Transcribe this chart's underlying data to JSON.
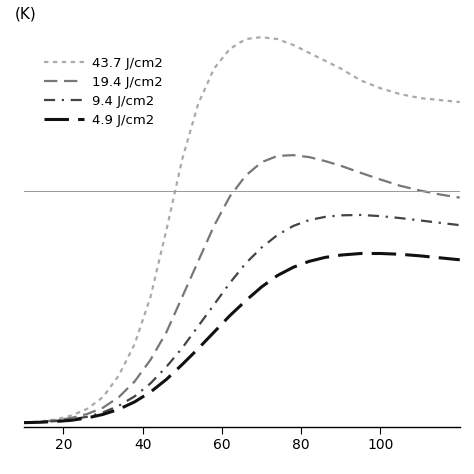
{
  "xlabel_label": "(K)",
  "x_ticks": [
    20,
    40,
    60,
    80,
    100
  ],
  "xlim": [
    10,
    120
  ],
  "ylim": [
    0.0,
    1.0
  ],
  "hline_y": 0.6,
  "series": [
    {
      "label": "43.7 J/cm2",
      "color": "#aaaaaa",
      "linewidth": 1.6,
      "linestyle_code": 0,
      "x": [
        10,
        14,
        18,
        22,
        26,
        30,
        34,
        38,
        42,
        46,
        50,
        54,
        58,
        62,
        66,
        70,
        74,
        78,
        82,
        86,
        90,
        95,
        100,
        105,
        110,
        115,
        120
      ],
      "y": [
        0.01,
        0.013,
        0.018,
        0.028,
        0.045,
        0.075,
        0.13,
        0.21,
        0.33,
        0.5,
        0.68,
        0.82,
        0.91,
        0.96,
        0.985,
        0.99,
        0.985,
        0.97,
        0.95,
        0.93,
        0.91,
        0.88,
        0.86,
        0.845,
        0.835,
        0.83,
        0.825
      ]
    },
    {
      "label": "19.4 J/cm2",
      "color": "#777777",
      "linewidth": 1.6,
      "linestyle_code": 1,
      "x": [
        10,
        14,
        18,
        22,
        26,
        30,
        34,
        38,
        42,
        46,
        50,
        54,
        58,
        62,
        66,
        70,
        74,
        78,
        82,
        86,
        90,
        95,
        100,
        105,
        110,
        115,
        120
      ],
      "y": [
        0.01,
        0.012,
        0.016,
        0.022,
        0.032,
        0.048,
        0.075,
        0.115,
        0.17,
        0.24,
        0.33,
        0.42,
        0.51,
        0.585,
        0.638,
        0.672,
        0.688,
        0.69,
        0.685,
        0.675,
        0.663,
        0.645,
        0.628,
        0.612,
        0.6,
        0.59,
        0.582
      ]
    },
    {
      "label": "9.4 J/cm2",
      "color": "#444444",
      "linewidth": 1.6,
      "linestyle_code": 2,
      "x": [
        10,
        14,
        18,
        22,
        26,
        30,
        34,
        38,
        42,
        46,
        50,
        54,
        58,
        62,
        66,
        70,
        74,
        78,
        82,
        86,
        90,
        95,
        100,
        105,
        110,
        115,
        120
      ],
      "y": [
        0.01,
        0.011,
        0.014,
        0.018,
        0.025,
        0.036,
        0.053,
        0.077,
        0.11,
        0.152,
        0.2,
        0.255,
        0.31,
        0.365,
        0.415,
        0.455,
        0.487,
        0.51,
        0.525,
        0.533,
        0.537,
        0.538,
        0.535,
        0.53,
        0.524,
        0.518,
        0.512
      ]
    },
    {
      "label": "4.9 J/cm2",
      "color": "#111111",
      "linewidth": 2.2,
      "linestyle_code": 3,
      "x": [
        10,
        14,
        18,
        22,
        26,
        30,
        34,
        38,
        42,
        46,
        50,
        54,
        58,
        62,
        66,
        70,
        74,
        78,
        82,
        86,
        90,
        95,
        100,
        105,
        110,
        115,
        120
      ],
      "y": [
        0.01,
        0.011,
        0.013,
        0.016,
        0.022,
        0.031,
        0.044,
        0.063,
        0.088,
        0.12,
        0.158,
        0.198,
        0.24,
        0.282,
        0.32,
        0.355,
        0.384,
        0.405,
        0.42,
        0.43,
        0.436,
        0.44,
        0.44,
        0.438,
        0.434,
        0.429,
        0.424
      ]
    }
  ],
  "legend_loc": "upper left",
  "background_color": "#ffffff",
  "spine_color": "#000000"
}
